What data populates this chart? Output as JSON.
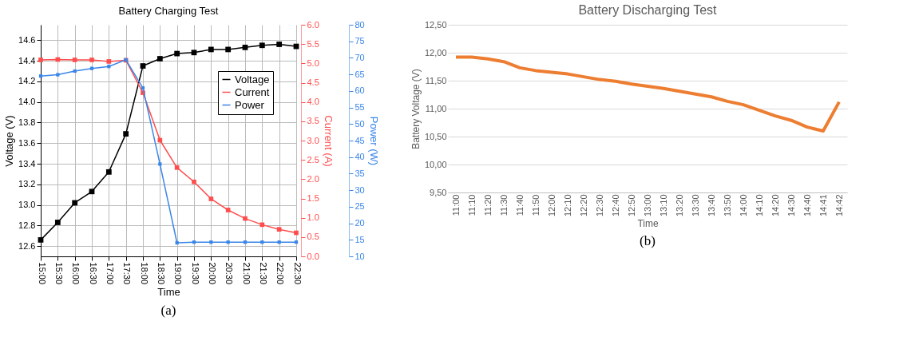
{
  "chart_data": [
    {
      "type": "line",
      "title": "Battery Charging Test",
      "xlabel": "Time",
      "ylabel": "Voltage (V)",
      "y2label": "Current (A)",
      "y3label": "Power (W)",
      "categories": [
        "15:00",
        "15:30",
        "16:00",
        "16:30",
        "17:00",
        "17:30",
        "18:00",
        "18:30",
        "19:00",
        "19:30",
        "20:00",
        "20:30",
        "21:00",
        "21:30",
        "22:00",
        "22:30"
      ],
      "series": [
        {
          "name": "Voltage",
          "color": "#000000",
          "axis": "y",
          "values": [
            12.66,
            12.83,
            13.02,
            13.13,
            13.32,
            13.69,
            14.35,
            14.42,
            14.47,
            14.48,
            14.51,
            14.51,
            14.53,
            14.55,
            14.56,
            14.54
          ]
        },
        {
          "name": "Current",
          "color": "#ff4d4d",
          "axis": "y2",
          "values": [
            5.09,
            5.1,
            5.09,
            5.09,
            5.05,
            5.08,
            4.24,
            3.01,
            2.3,
            1.93,
            1.49,
            1.2,
            0.98,
            0.82,
            0.7,
            0.61
          ]
        },
        {
          "name": "Power",
          "color": "#3a86e8",
          "axis": "y3",
          "values": [
            64.5,
            64.9,
            66.0,
            66.8,
            67.4,
            69.4,
            60.9,
            37.9,
            14.1,
            14.3,
            14.3,
            14.3,
            14.3,
            14.3,
            14.3,
            14.3
          ]
        }
      ],
      "ylim": [
        12.5,
        14.75
      ],
      "yticks": [
        12.6,
        12.8,
        {
          "value": 13.0,
          "label": "13.0"
        },
        13.2,
        13.4,
        13.6,
        13.8,
        {
          "value": 14.0,
          "label": "14.0"
        },
        14.2,
        14.4,
        14.6
      ],
      "y2lim": [
        0,
        6
      ],
      "y2ticks": [
        {
          "value": 0,
          "label": "0.0"
        },
        0.5,
        {
          "value": 1,
          "label": "1.0"
        },
        1.5,
        {
          "value": 2,
          "label": "2.0"
        },
        2.5,
        {
          "value": 3,
          "label": "3.0"
        },
        3.5,
        {
          "value": 4,
          "label": "4.0"
        },
        4.5,
        {
          "value": 5,
          "label": "5.0"
        },
        5.5,
        {
          "value": 6,
          "label": "6.0"
        }
      ],
      "y3lim": [
        10,
        80
      ],
      "y3ticks": [
        10,
        15,
        20,
        25,
        30,
        35,
        40,
        45,
        50,
        55,
        60,
        65,
        70,
        75,
        80
      ],
      "grid": true,
      "legend": "top right",
      "marker": "square",
      "line_style": "solid",
      "annotations": [
        "(a)"
      ]
    },
    {
      "type": "line",
      "title": "Battery Discharging Test",
      "xlabel": "Time",
      "ylabel": "Battery Voltage (V)",
      "categories": [
        "11:00",
        "11:10",
        "11:20",
        "11:30",
        "11:40",
        "11:50",
        "12:00",
        "12:10",
        "12:20",
        "12:30",
        "12:40",
        "12:50",
        "13:00",
        "13:10",
        "13:20",
        "13:30",
        "13:40",
        "13:50",
        "14:00",
        "14:10",
        "14:20",
        "14:30",
        "14:40",
        "14:41",
        "14:42"
      ],
      "series": [
        {
          "color": "#ed7d31",
          "values": [
            11.92,
            11.92,
            11.89,
            11.84,
            11.73,
            11.68,
            11.65,
            11.62,
            11.57,
            11.52,
            11.49,
            11.44,
            11.4,
            11.36,
            11.31,
            11.26,
            11.21,
            11.13,
            11.07,
            10.97,
            10.87,
            10.79,
            10.67,
            10.6,
            11.12
          ]
        }
      ],
      "ylim": [
        9.5,
        12.5
      ],
      "yticks": [
        {
          "value": 9.5,
          "label": "9,50"
        },
        {
          "value": 10,
          "label": "10,00"
        },
        {
          "value": 10.5,
          "label": "10,50"
        },
        {
          "value": 11,
          "label": "11,00"
        },
        {
          "value": 11.5,
          "label": "11,50"
        },
        {
          "value": 12,
          "label": "12,00"
        },
        {
          "value": 12.5,
          "label": "12,50"
        }
      ],
      "grid": "y",
      "line_style": "solid",
      "annotations": [
        "(b)"
      ]
    }
  ]
}
